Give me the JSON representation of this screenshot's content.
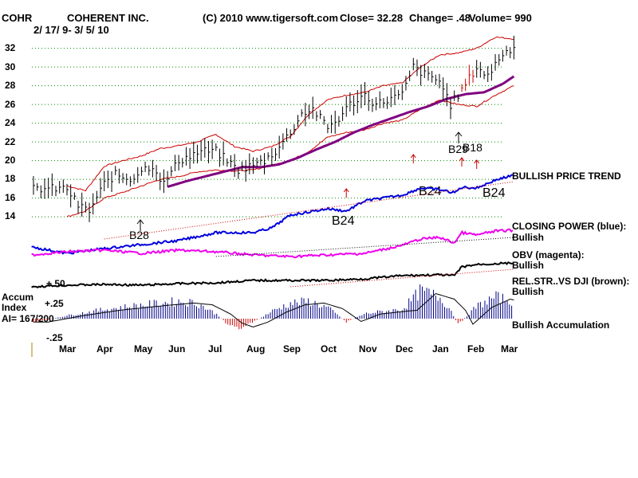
{
  "header": {
    "ticker": "COHR",
    "company": "COHERENT INC.",
    "copyright": "(C) 2010 www.tigersoft.com",
    "close_text": "Close=  32.28",
    "change_text": "Change= .48",
    "volume_text": "Volume= 990",
    "date_range": "2/ 17/ 9- 3/ 5/ 10"
  },
  "indicator_labels": {
    "price_trend": "BULLISH PRICE TREND",
    "closing_power_1": "CLOSING POWER (blue):",
    "closing_power_2": "Bullish",
    "obv_1": "OBV (magenta):",
    "obv_2": "Bullish",
    "relstr_1": "REL.STR..VS DJI (brown):",
    "relstr_2": "Bullish",
    "accum": "Bullish Accumulation"
  },
  "accum_panel": {
    "label_1": "Accum",
    "label_2": "Index",
    "ai": "AI= 167/200",
    "tick_plus50": "+.50",
    "tick_plus25": "+.25",
    "tick_minus25": "-.25"
  },
  "signals": [
    {
      "label": "B28",
      "size": "small"
    },
    {
      "label": "B24",
      "size": "big"
    },
    {
      "label": "B24",
      "size": "big"
    },
    {
      "label": "B24",
      "size": "big"
    },
    {
      "label": "B29",
      "size": "small"
    },
    {
      "label": "B18",
      "size": "small"
    }
  ],
  "colors": {
    "price": "#000000",
    "bands": "#cc0000",
    "ma": "#800080",
    "closing_power": "#0000dd",
    "obv": "#ee00ee",
    "rel_str": "#000000",
    "accum_pos": "#000088",
    "accum_neg": "#cc0000",
    "grid": "#008800",
    "signal_arrow": "#cc0000"
  },
  "chart_data": {
    "type": "line",
    "title": "COHERENT INC.",
    "ylim": [
      14,
      33
    ],
    "y_ticks": [
      "32",
      "30",
      "28",
      "26",
      "24",
      "22",
      "20",
      "18",
      "16",
      "14"
    ],
    "x_ticks": [
      "Mar",
      "Apr",
      "May",
      "Jun",
      "Jul",
      "Aug",
      "Sep",
      "Oct",
      "Nov",
      "Dec",
      "Jan",
      "Feb",
      "Mar"
    ],
    "grid": true,
    "series": [
      {
        "name": "Close",
        "t": [
          0,
          0.3,
          0.6,
          1,
          1.3,
          1.7,
          2,
          2.3,
          2.6,
          3,
          3.3,
          3.6,
          4,
          4.3,
          4.6,
          5,
          5.3,
          5.6,
          6,
          6.3,
          6.6,
          7,
          7.3,
          7.6,
          8,
          8.3,
          8.6,
          9,
          9.3,
          9.6,
          10,
          10.3,
          10.6,
          11,
          11.3,
          11.6,
          12
        ],
        "values": [
          17,
          15.2,
          14.6,
          17.5,
          18.5,
          18,
          19,
          19.5,
          17.5,
          20,
          20.5,
          21,
          21,
          20,
          19,
          19.5,
          20,
          21,
          23,
          25,
          25.5,
          23.5,
          24.5,
          26,
          27,
          26,
          26.5,
          27,
          30,
          29.2,
          28.5,
          26,
          27.5,
          30,
          29,
          31,
          32.28
        ]
      },
      {
        "name": "Upper Band",
        "t": [
          0,
          0.5,
          1,
          1.5,
          2,
          2.5,
          3,
          3.5,
          4,
          4.5,
          5,
          5.5,
          6,
          6.5,
          7,
          7.5,
          8,
          8.5,
          9,
          9.5,
          10,
          10.5,
          11,
          11.5,
          12
        ],
        "values": [
          17.3,
          16.8,
          19.4,
          20,
          20.5,
          21.3,
          21.6,
          22,
          22.8,
          21.5,
          21,
          21.5,
          22.6,
          25,
          26.5,
          27,
          27.3,
          28,
          28.3,
          30,
          31.3,
          31.5,
          32,
          33.2,
          33
        ]
      },
      {
        "name": "Lower Band",
        "t": [
          0,
          0.5,
          1,
          1.5,
          2,
          2.5,
          3,
          3.5,
          4,
          4.5,
          5,
          5.5,
          6,
          6.5,
          7,
          7.5,
          8,
          8.5,
          9,
          9.5,
          10,
          10.5,
          11,
          11.5,
          12
        ],
        "values": [
          14,
          14.6,
          16,
          16.6,
          17.3,
          18,
          18.3,
          18.8,
          19,
          18.9,
          19,
          19.5,
          20,
          21,
          22.5,
          23,
          23.3,
          24,
          24.3,
          25.5,
          26.5,
          26,
          25.8,
          27,
          28
        ]
      },
      {
        "name": "Moving Average",
        "t": [
          2.7,
          3.2,
          3.7,
          4.2,
          4.7,
          5.2,
          5.7,
          6.2,
          6.7,
          7.2,
          7.7,
          8.2,
          8.7,
          9.2,
          9.7,
          10.2,
          10.7,
          11.2,
          11.7,
          12
        ],
        "values": [
          17.2,
          17.8,
          18.3,
          18.8,
          19.3,
          19.3,
          19.6,
          20.3,
          21.2,
          22,
          23,
          23.8,
          24.5,
          25.2,
          25.8,
          26.6,
          27.1,
          27.3,
          28.2,
          29
        ]
      }
    ],
    "signal_markers": [
      {
        "label": "B28",
        "t": 2.7
      },
      {
        "label": "B24",
        "t": 7.5
      },
      {
        "label": "B24",
        "t": 9.5
      },
      {
        "label": "B24",
        "t": 11.4
      },
      {
        "label": "B29",
        "t": 10.5
      },
      {
        "label": "B18",
        "t": 10.7
      }
    ],
    "red_arrows_t": [
      7.5,
      9.3,
      10.6,
      11.0
    ]
  }
}
